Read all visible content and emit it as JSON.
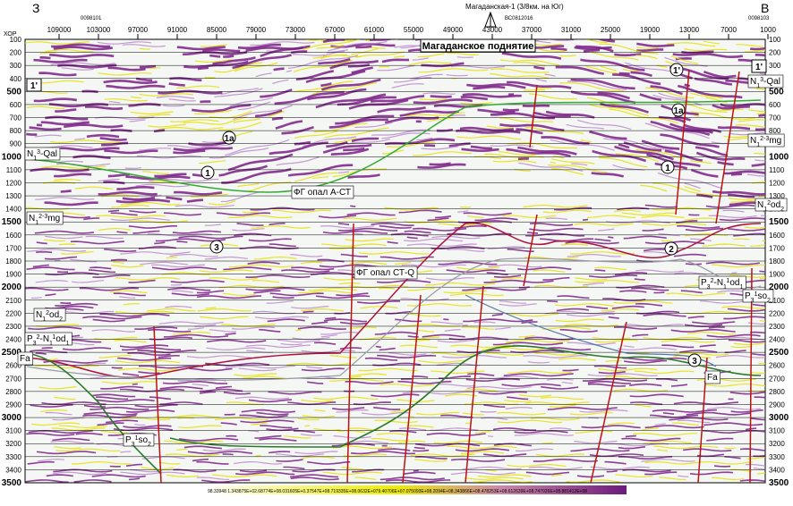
{
  "header": {
    "left_direction": "З",
    "right_direction": "В",
    "depth_axis_label": "ХОР",
    "title": "Магаданское поднятие",
    "well_label": "Магаданская-1 (3/8км. на Юг)",
    "profile_labels": [
      "0098101",
      "ВС0812016",
      "0098103"
    ]
  },
  "top_axis": {
    "ticks": [
      109000,
      103000,
      97000,
      91000,
      85000,
      79000,
      73000,
      67000,
      61000,
      55000,
      49000,
      43000,
      37000,
      31000,
      25000,
      19000,
      13000,
      7000,
      1000
    ]
  },
  "depth_axis": {
    "ticks": [
      100,
      200,
      300,
      400,
      500,
      600,
      700,
      800,
      900,
      1000,
      1100,
      1200,
      1300,
      1400,
      1500,
      1600,
      1700,
      1800,
      1900,
      2000,
      2100,
      2200,
      2300,
      2400,
      2500,
      2600,
      2700,
      2800,
      2900,
      3000,
      3100,
      3200,
      3300,
      3400,
      3500
    ]
  },
  "markers": [
    "1'",
    "1'",
    "1'",
    "1a",
    "1a",
    "1",
    "1",
    "2",
    "3",
    "3"
  ],
  "formation_labels": [
    {
      "parts": [
        {
          "text": "N",
          "pos": "base"
        },
        {
          "text": "1",
          "pos": "sub"
        },
        {
          "text": "3",
          "pos": "sup"
        },
        {
          "text": "-Qal",
          "pos": "base"
        }
      ]
    },
    {
      "parts": [
        {
          "text": "N",
          "pos": "base"
        },
        {
          "text": "1",
          "pos": "sub"
        },
        {
          "text": "3",
          "pos": "sup"
        },
        {
          "text": "-Qal",
          "pos": "base"
        }
      ]
    },
    {
      "parts": [
        {
          "text": "N",
          "pos": "base"
        },
        {
          "text": "1",
          "pos": "sub"
        },
        {
          "text": "2-3",
          "pos": "sup"
        },
        {
          "text": "mg",
          "pos": "base"
        }
      ]
    },
    {
      "parts": [
        {
          "text": "N",
          "pos": "base"
        },
        {
          "text": "1",
          "pos": "sub"
        },
        {
          "text": "2-3",
          "pos": "sup"
        },
        {
          "text": "mg",
          "pos": "base"
        }
      ]
    },
    {
      "parts": [
        {
          "text": "N",
          "pos": "base"
        },
        {
          "text": "1",
          "pos": "sub"
        },
        {
          "text": "2",
          "pos": "sup"
        },
        {
          "text": "od",
          "pos": "base"
        },
        {
          "text": "2",
          "pos": "sub"
        }
      ]
    },
    {
      "parts": [
        {
          "text": "N",
          "pos": "base"
        },
        {
          "text": "1",
          "pos": "sub"
        },
        {
          "text": "2",
          "pos": "sup"
        },
        {
          "text": "od",
          "pos": "base"
        },
        {
          "text": "2",
          "pos": "sub"
        }
      ]
    },
    {
      "parts": [
        {
          "text": "P",
          "pos": "base"
        },
        {
          "text": "3",
          "pos": "sub"
        },
        {
          "text": "2",
          "pos": "sup"
        },
        {
          "text": "-N",
          "pos": "base"
        },
        {
          "text": "1",
          "pos": "sub"
        },
        {
          "text": "1",
          "pos": "sup"
        },
        {
          "text": "od",
          "pos": "base"
        },
        {
          "text": "1",
          "pos": "sub"
        }
      ]
    },
    {
      "parts": [
        {
          "text": "P",
          "pos": "base"
        },
        {
          "text": "3",
          "pos": "sub"
        },
        {
          "text": "2",
          "pos": "sup"
        },
        {
          "text": "-N",
          "pos": "base"
        },
        {
          "text": "1",
          "pos": "sub"
        },
        {
          "text": "1",
          "pos": "sup"
        },
        {
          "text": "od",
          "pos": "base"
        },
        {
          "text": "1",
          "pos": "sub"
        }
      ]
    },
    {
      "parts": [
        {
          "text": "P",
          "pos": "base"
        },
        {
          "text": "3",
          "pos": "sub"
        },
        {
          "text": "1",
          "pos": "sup"
        },
        {
          "text": "so",
          "pos": "base"
        },
        {
          "text": "2",
          "pos": "sub"
        }
      ]
    },
    {
      "parts": [
        {
          "text": "P",
          "pos": "base"
        },
        {
          "text": "3",
          "pos": "sub"
        },
        {
          "text": "1",
          "pos": "sup"
        },
        {
          "text": "so",
          "pos": "base"
        },
        {
          "text": "2",
          "pos": "sub"
        }
      ]
    },
    {
      "parts": [
        {
          "text": "Fa",
          "pos": "base"
        }
      ]
    },
    {
      "parts": [
        {
          "text": "Fa",
          "pos": "base"
        }
      ]
    },
    {
      "parts": [
        {
          "text": "ФГ опал А-СТ",
          "pos": "base"
        }
      ]
    },
    {
      "parts": [
        {
          "text": "ФГ опал СТ-Q",
          "pos": "base"
        }
      ]
    }
  ],
  "colorbar": {
    "label": "98.33948  1.343875E+02.68774E+08.031605E+0.37547E+08.719335E+08.0632E+079.40706E+07.075093E+08.2094E+08.343866E+08.478253E+08.612639E+08.747026E+08.881412E+08"
  }
}
